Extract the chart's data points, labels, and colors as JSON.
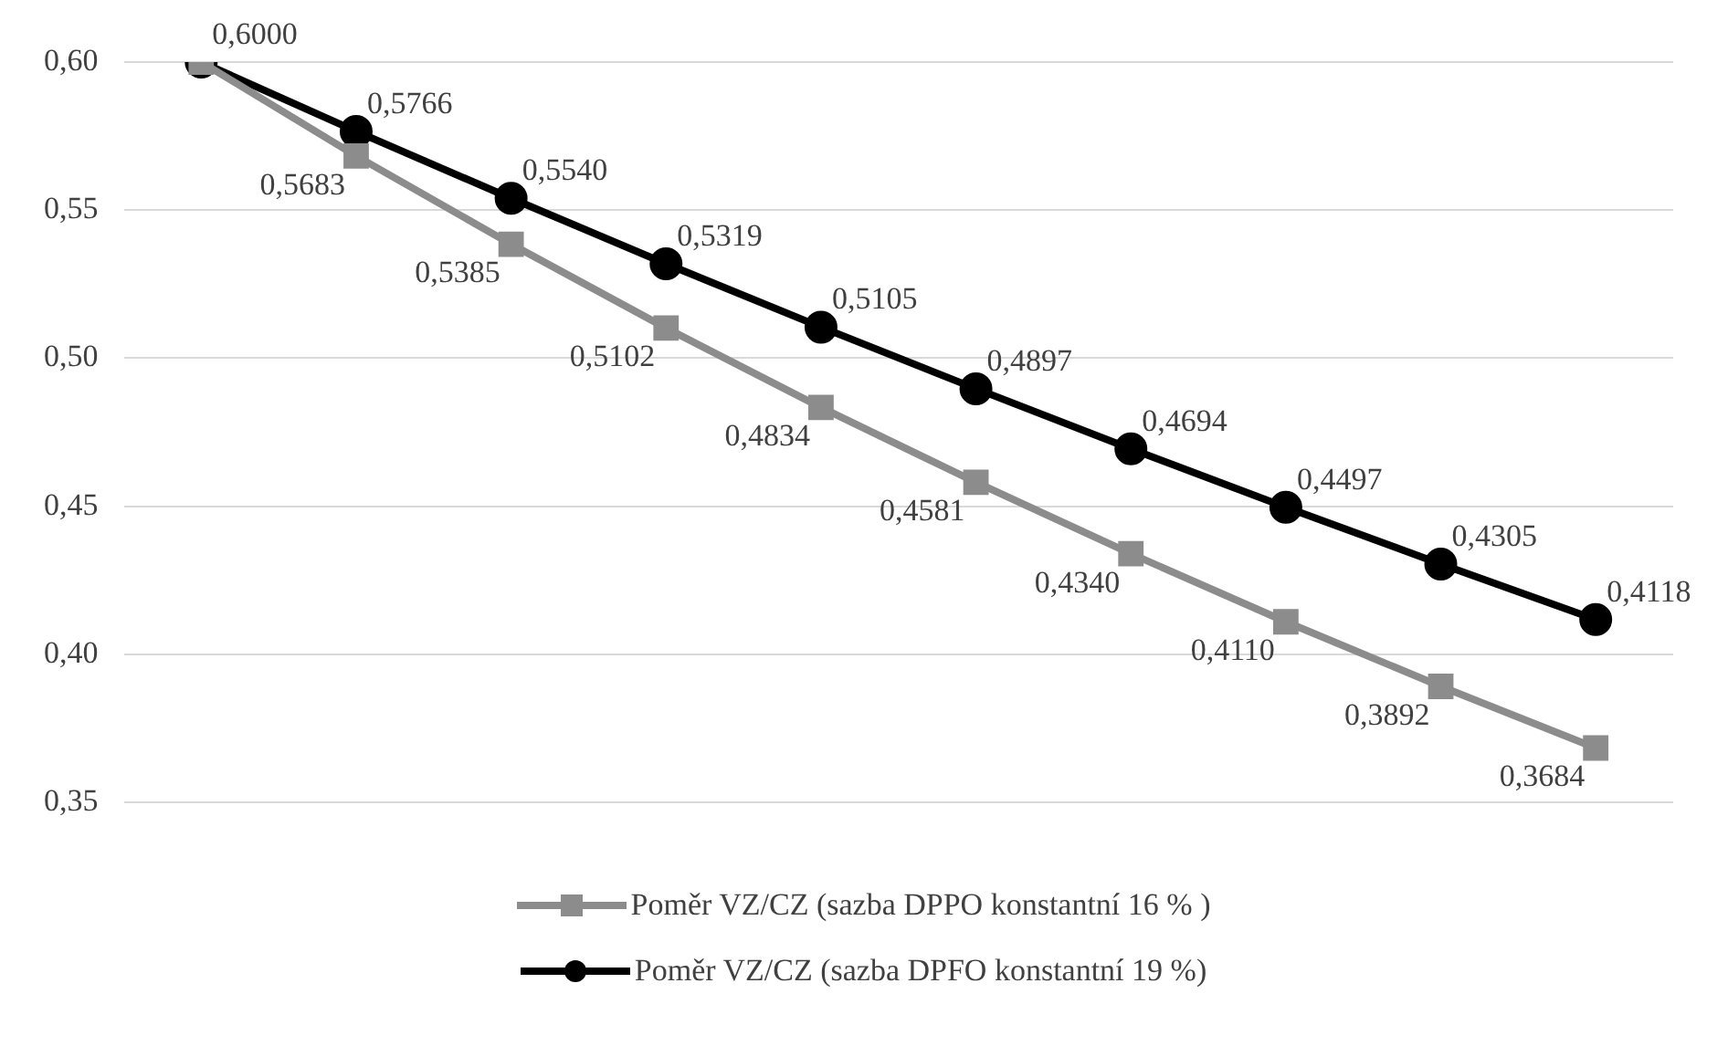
{
  "chart_data": {
    "type": "line",
    "categories": [
      null,
      null,
      null,
      null,
      null,
      null,
      null,
      null,
      null,
      null
    ],
    "ylim": [
      0.35,
      0.6
    ],
    "yticks": [
      {
        "value": 0.35,
        "label": "0,35"
      },
      {
        "value": 0.4,
        "label": "0,40"
      },
      {
        "value": 0.45,
        "label": "0,45"
      },
      {
        "value": 0.5,
        "label": "0,50"
      },
      {
        "value": 0.55,
        "label": "0,55"
      },
      {
        "value": 0.6,
        "label": "0,60"
      }
    ],
    "grid": "y",
    "legend": "bottom",
    "line_style": "solid",
    "series": [
      {
        "name": "Poměr VZ/CZ (sazba DPPO konstantní 16 % )",
        "color": "#8c8c8c",
        "marker": "square",
        "values": [
          0.6,
          0.5683,
          0.5385,
          0.5102,
          0.4834,
          0.4581,
          0.434,
          0.411,
          0.3892,
          0.3684
        ],
        "value_labels": [
          null,
          "0,5683",
          "0,5385",
          "0,5102",
          "0,4834",
          "0,4581",
          "0,4340",
          "0,4110",
          "0,3892",
          "0,3684"
        ]
      },
      {
        "name": "Poměr VZ/CZ (sazba DPFO konstantní 19 %)",
        "color": "#000000",
        "marker": "circle",
        "values": [
          0.6,
          0.5766,
          0.554,
          0.5319,
          0.5105,
          0.4897,
          0.4694,
          0.4497,
          0.4305,
          0.4118
        ],
        "value_labels": [
          "0,6000",
          "0,5766",
          "0,5540",
          "0,5319",
          "0,5105",
          "0,4897",
          "0,4694",
          "0,4497",
          "0,4305",
          "0,4118"
        ]
      }
    ]
  }
}
